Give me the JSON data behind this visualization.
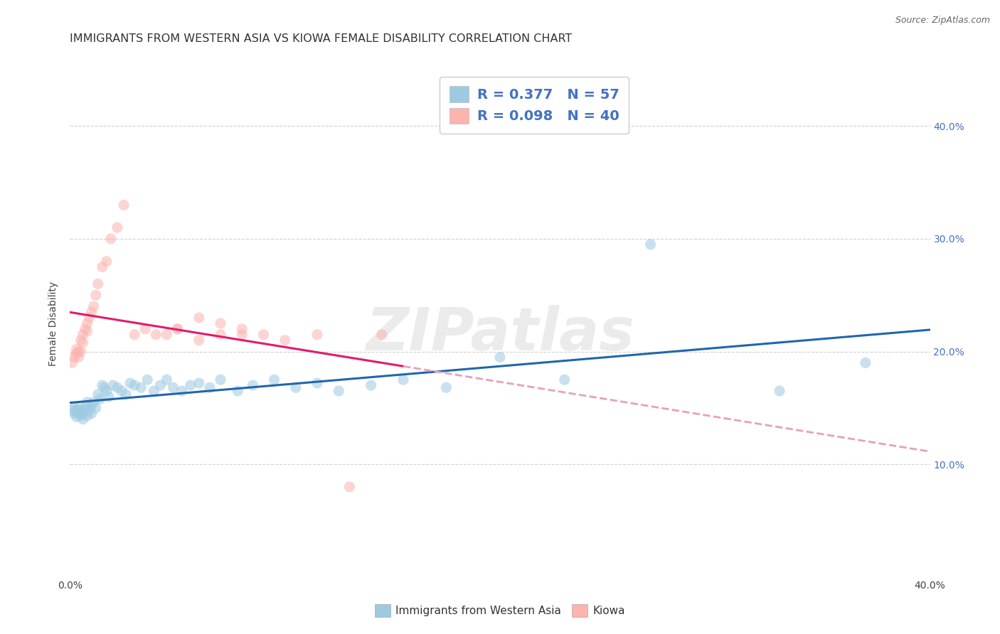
{
  "title": "IMMIGRANTS FROM WESTERN ASIA VS KIOWA FEMALE DISABILITY CORRELATION CHART",
  "source": "Source: ZipAtlas.com",
  "ylabel": "Female Disability",
  "xlim": [
    0.0,
    0.4
  ],
  "ylim": [
    0.0,
    0.45
  ],
  "blue_color": "#9ecae1",
  "pink_color": "#fbb4ae",
  "blue_line_color": "#2166ac",
  "pink_line_color": "#e31a6e",
  "pink_dash_color": "#e8a0b8",
  "background_color": "#ffffff",
  "grid_color": "#d0d0d0",
  "legend_r1": "0.377",
  "legend_n1": "57",
  "legend_r2": "0.098",
  "legend_n2": "40",
  "title_fontsize": 11.5,
  "axis_label_fontsize": 10,
  "tick_fontsize": 10,
  "legend_fontsize": 14,
  "scatter_size": 120,
  "scatter_alpha": 0.55,
  "watermark": "ZIPatlas",
  "watermark_color": "#c8c8c8",
  "watermark_fontsize": 60,
  "watermark_alpha": 0.35,
  "blue_x": [
    0.001,
    0.002,
    0.002,
    0.003,
    0.003,
    0.004,
    0.004,
    0.005,
    0.005,
    0.006,
    0.006,
    0.007,
    0.007,
    0.008,
    0.008,
    0.009,
    0.01,
    0.01,
    0.011,
    0.012,
    0.013,
    0.014,
    0.015,
    0.016,
    0.017,
    0.018,
    0.02,
    0.022,
    0.024,
    0.026,
    0.028,
    0.03,
    0.033,
    0.036,
    0.039,
    0.042,
    0.045,
    0.048,
    0.052,
    0.056,
    0.06,
    0.065,
    0.07,
    0.078,
    0.085,
    0.095,
    0.105,
    0.115,
    0.125,
    0.14,
    0.155,
    0.175,
    0.2,
    0.23,
    0.27,
    0.33,
    0.37
  ],
  "blue_y": [
    0.148,
    0.145,
    0.15,
    0.142,
    0.148,
    0.145,
    0.15,
    0.143,
    0.148,
    0.14,
    0.145,
    0.15,
    0.148,
    0.155,
    0.143,
    0.148,
    0.152,
    0.145,
    0.155,
    0.15,
    0.162,
    0.158,
    0.17,
    0.168,
    0.165,
    0.16,
    0.17,
    0.168,
    0.165,
    0.162,
    0.172,
    0.17,
    0.168,
    0.175,
    0.165,
    0.17,
    0.175,
    0.168,
    0.165,
    0.17,
    0.172,
    0.168,
    0.175,
    0.165,
    0.17,
    0.175,
    0.168,
    0.172,
    0.165,
    0.17,
    0.175,
    0.168,
    0.195,
    0.175,
    0.295,
    0.165,
    0.19
  ],
  "pink_x": [
    0.001,
    0.002,
    0.003,
    0.003,
    0.004,
    0.004,
    0.005,
    0.005,
    0.006,
    0.006,
    0.007,
    0.008,
    0.008,
    0.009,
    0.01,
    0.011,
    0.012,
    0.013,
    0.015,
    0.017,
    0.019,
    0.022,
    0.025,
    0.03,
    0.035,
    0.04,
    0.045,
    0.05,
    0.06,
    0.07,
    0.08,
    0.09,
    0.1,
    0.115,
    0.13,
    0.145,
    0.06,
    0.05,
    0.07,
    0.08
  ],
  "pink_y": [
    0.19,
    0.195,
    0.198,
    0.202,
    0.2,
    0.195,
    0.21,
    0.2,
    0.215,
    0.208,
    0.22,
    0.225,
    0.218,
    0.23,
    0.235,
    0.24,
    0.25,
    0.26,
    0.275,
    0.28,
    0.3,
    0.31,
    0.33,
    0.215,
    0.22,
    0.215,
    0.215,
    0.22,
    0.21,
    0.215,
    0.22,
    0.215,
    0.21,
    0.215,
    0.08,
    0.215,
    0.23,
    0.22,
    0.225,
    0.215
  ]
}
